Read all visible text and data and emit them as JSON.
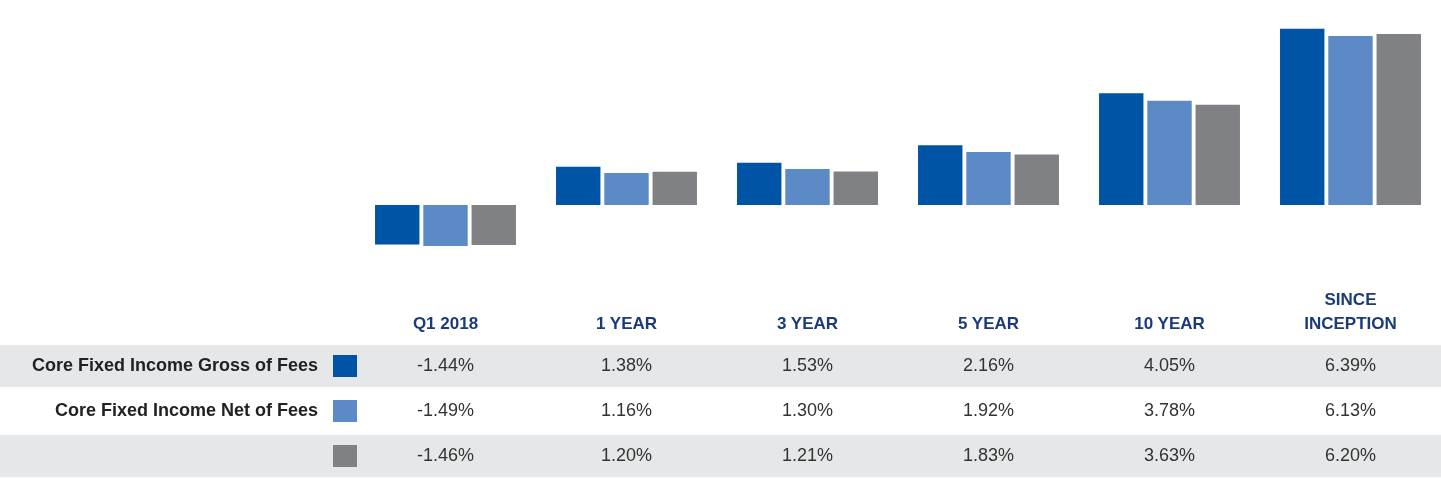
{
  "chart_data": {
    "type": "bar",
    "categories": [
      "Q1 2018",
      "1 YEAR",
      "3 YEAR",
      "5 YEAR",
      "10 YEAR",
      "SINCE INCEPTION"
    ],
    "series": [
      {
        "name": "Core Fixed Income Gross of Fees",
        "color": "#0054a6",
        "values": [
          -1.44,
          1.38,
          1.53,
          2.16,
          4.05,
          6.39
        ],
        "value_labels": [
          "-1.44%",
          "1.38%",
          "1.53%",
          "2.16%",
          "4.05%",
          "6.39%"
        ]
      },
      {
        "name": "Core Fixed Income Net of Fees",
        "color": "#5b8ac6",
        "values": [
          -1.49,
          1.16,
          1.3,
          1.92,
          3.78,
          6.13
        ],
        "value_labels": [
          "-1.49%",
          "1.16%",
          "1.30%",
          "1.92%",
          "3.78%",
          "6.13%"
        ]
      },
      {
        "color": "#808184",
        "values": [
          -1.46,
          1.2,
          1.21,
          1.83,
          3.63,
          6.2
        ],
        "value_labels": [
          "-1.46%",
          "1.20%",
          "1.21%",
          "1.83%",
          "3.63%",
          "6.20%"
        ]
      }
    ],
    "legend": "bottom left"
  }
}
